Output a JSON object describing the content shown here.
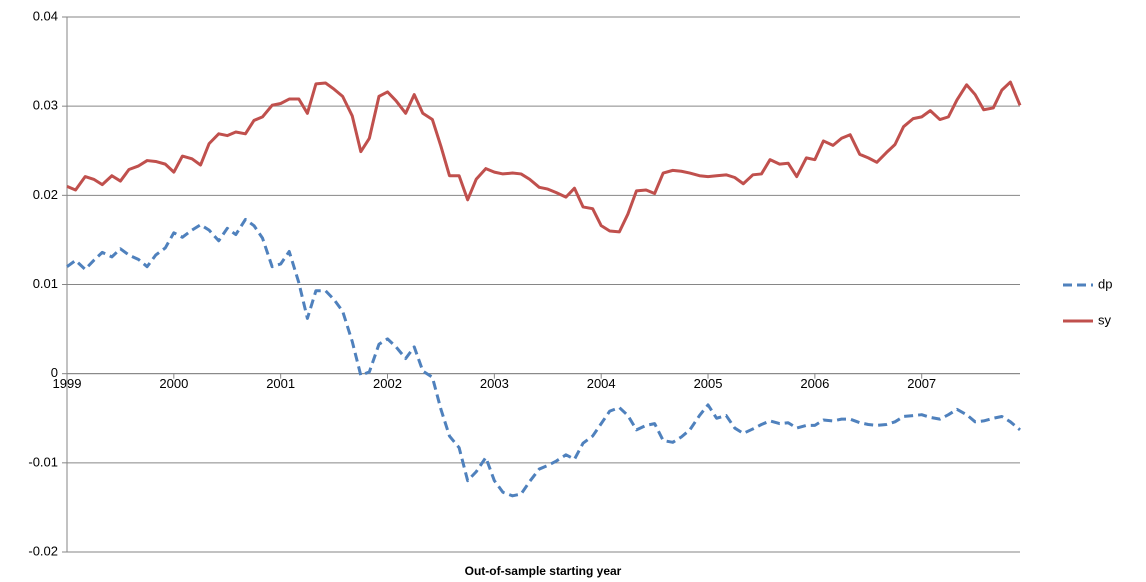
{
  "chart_data": {
    "type": "line",
    "x_label": "Out-of-sample starting year",
    "x": [
      1999,
      1999.08,
      1999.17,
      1999.25,
      1999.33,
      1999.42,
      1999.5,
      1999.58,
      1999.67,
      1999.75,
      1999.83,
      1999.92,
      2000,
      2000.08,
      2000.17,
      2000.25,
      2000.33,
      2000.42,
      2000.5,
      2000.58,
      2000.67,
      2000.75,
      2000.83,
      2000.92,
      2001,
      2001.08,
      2001.17,
      2001.25,
      2001.33,
      2001.42,
      2001.5,
      2001.58,
      2001.67,
      2001.75,
      2001.83,
      2001.92,
      2002,
      2002.08,
      2002.17,
      2002.25,
      2002.33,
      2002.42,
      2002.5,
      2002.58,
      2002.67,
      2002.75,
      2002.83,
      2002.92,
      2003,
      2003.08,
      2003.17,
      2003.25,
      2003.33,
      2003.42,
      2003.5,
      2003.58,
      2003.67,
      2003.75,
      2003.83,
      2003.92,
      2004,
      2004.08,
      2004.17,
      2004.25,
      2004.33,
      2004.42,
      2004.5,
      2004.58,
      2004.67,
      2004.75,
      2004.83,
      2004.92,
      2005,
      2005.08,
      2005.17,
      2005.25,
      2005.33,
      2005.42,
      2005.5,
      2005.58,
      2005.67,
      2005.75,
      2005.83,
      2005.92,
      2006,
      2006.08,
      2006.17,
      2006.25,
      2006.33,
      2006.42,
      2006.5,
      2006.58,
      2006.67,
      2006.75,
      2006.83,
      2006.92,
      2007,
      2007.08,
      2007.17,
      2007.25,
      2007.33,
      2007.42,
      2007.5,
      2007.58,
      2007.67,
      2007.75,
      2007.83,
      2007.92
    ],
    "xlim": [
      1999,
      2007.92
    ],
    "xticks": [
      1999,
      2000,
      2001,
      2002,
      2003,
      2004,
      2005,
      2006,
      2007
    ],
    "ylim": [
      -0.02,
      0.04
    ],
    "yticks": [
      -0.02,
      -0.01,
      0,
      0.01,
      0.02,
      0.03,
      0.04
    ],
    "grid": true,
    "legend": "right",
    "series": [
      {
        "name": "dp",
        "color": "#4f81bd",
        "dashed": true,
        "values": [
          0.012,
          0.0127,
          0.0117,
          0.0127,
          0.0136,
          0.0131,
          0.014,
          0.0133,
          0.0128,
          0.012,
          0.0133,
          0.0141,
          0.0158,
          0.0153,
          0.0161,
          0.0167,
          0.0161,
          0.0149,
          0.0163,
          0.0156,
          0.0173,
          0.0166,
          0.0152,
          0.012,
          0.0123,
          0.0137,
          0.0102,
          0.0062,
          0.0093,
          0.0093,
          0.0083,
          0.007,
          0.0036,
          -0.0002,
          0.0002,
          0.0033,
          0.0039,
          0.003,
          0.0017,
          0.003,
          0.0003,
          -0.0004,
          -0.004,
          -0.007,
          -0.0083,
          -0.012,
          -0.011,
          -0.0094,
          -0.012,
          -0.0133,
          -0.0137,
          -0.0135,
          -0.0121,
          -0.0107,
          -0.0103,
          -0.0098,
          -0.0091,
          -0.0096,
          -0.0078,
          -0.007,
          -0.0056,
          -0.0042,
          -0.0038,
          -0.0047,
          -0.0063,
          -0.0058,
          -0.0056,
          -0.0075,
          -0.0077,
          -0.0071,
          -0.0063,
          -0.0047,
          -0.0035,
          -0.005,
          -0.0047,
          -0.0061,
          -0.0067,
          -0.0062,
          -0.0057,
          -0.0053,
          -0.0056,
          -0.0055,
          -0.0061,
          -0.0058,
          -0.0058,
          -0.0052,
          -0.0053,
          -0.0051,
          -0.0051,
          -0.0055,
          -0.0057,
          -0.0058,
          -0.0057,
          -0.0054,
          -0.0048,
          -0.0047,
          -0.0046,
          -0.0049,
          -0.0051,
          -0.0046,
          -0.004,
          -0.0046,
          -0.0054,
          -0.0053,
          -0.005,
          -0.0048,
          -0.0054,
          -0.0063
        ]
      },
      {
        "name": "sy",
        "color": "#c0504d",
        "dashed": false,
        "values": [
          0.021,
          0.0206,
          0.0221,
          0.0218,
          0.0212,
          0.0222,
          0.0216,
          0.0229,
          0.0233,
          0.0239,
          0.0238,
          0.0235,
          0.0226,
          0.0244,
          0.0241,
          0.0234,
          0.0258,
          0.0269,
          0.0267,
          0.0271,
          0.0269,
          0.0284,
          0.0288,
          0.0301,
          0.0303,
          0.0308,
          0.0308,
          0.0292,
          0.0325,
          0.0326,
          0.0319,
          0.0311,
          0.0289,
          0.0249,
          0.0264,
          0.0311,
          0.0316,
          0.0306,
          0.0292,
          0.0313,
          0.0292,
          0.0285,
          0.0255,
          0.0222,
          0.0222,
          0.0195,
          0.0218,
          0.023,
          0.0226,
          0.0224,
          0.0225,
          0.0224,
          0.0218,
          0.0209,
          0.0207,
          0.0203,
          0.0198,
          0.0208,
          0.0187,
          0.0185,
          0.0166,
          0.016,
          0.0159,
          0.0179,
          0.0205,
          0.0206,
          0.0202,
          0.0225,
          0.0228,
          0.0227,
          0.0225,
          0.0222,
          0.0221,
          0.0222,
          0.0223,
          0.022,
          0.0213,
          0.0223,
          0.0224,
          0.024,
          0.0235,
          0.0236,
          0.0221,
          0.0242,
          0.024,
          0.0261,
          0.0256,
          0.0264,
          0.0268,
          0.0246,
          0.0242,
          0.0237,
          0.0248,
          0.0257,
          0.0277,
          0.0286,
          0.0288,
          0.0295,
          0.0285,
          0.0288,
          0.0307,
          0.0324,
          0.0313,
          0.0296,
          0.0298,
          0.0318,
          0.0327,
          0.0301
        ]
      }
    ]
  }
}
